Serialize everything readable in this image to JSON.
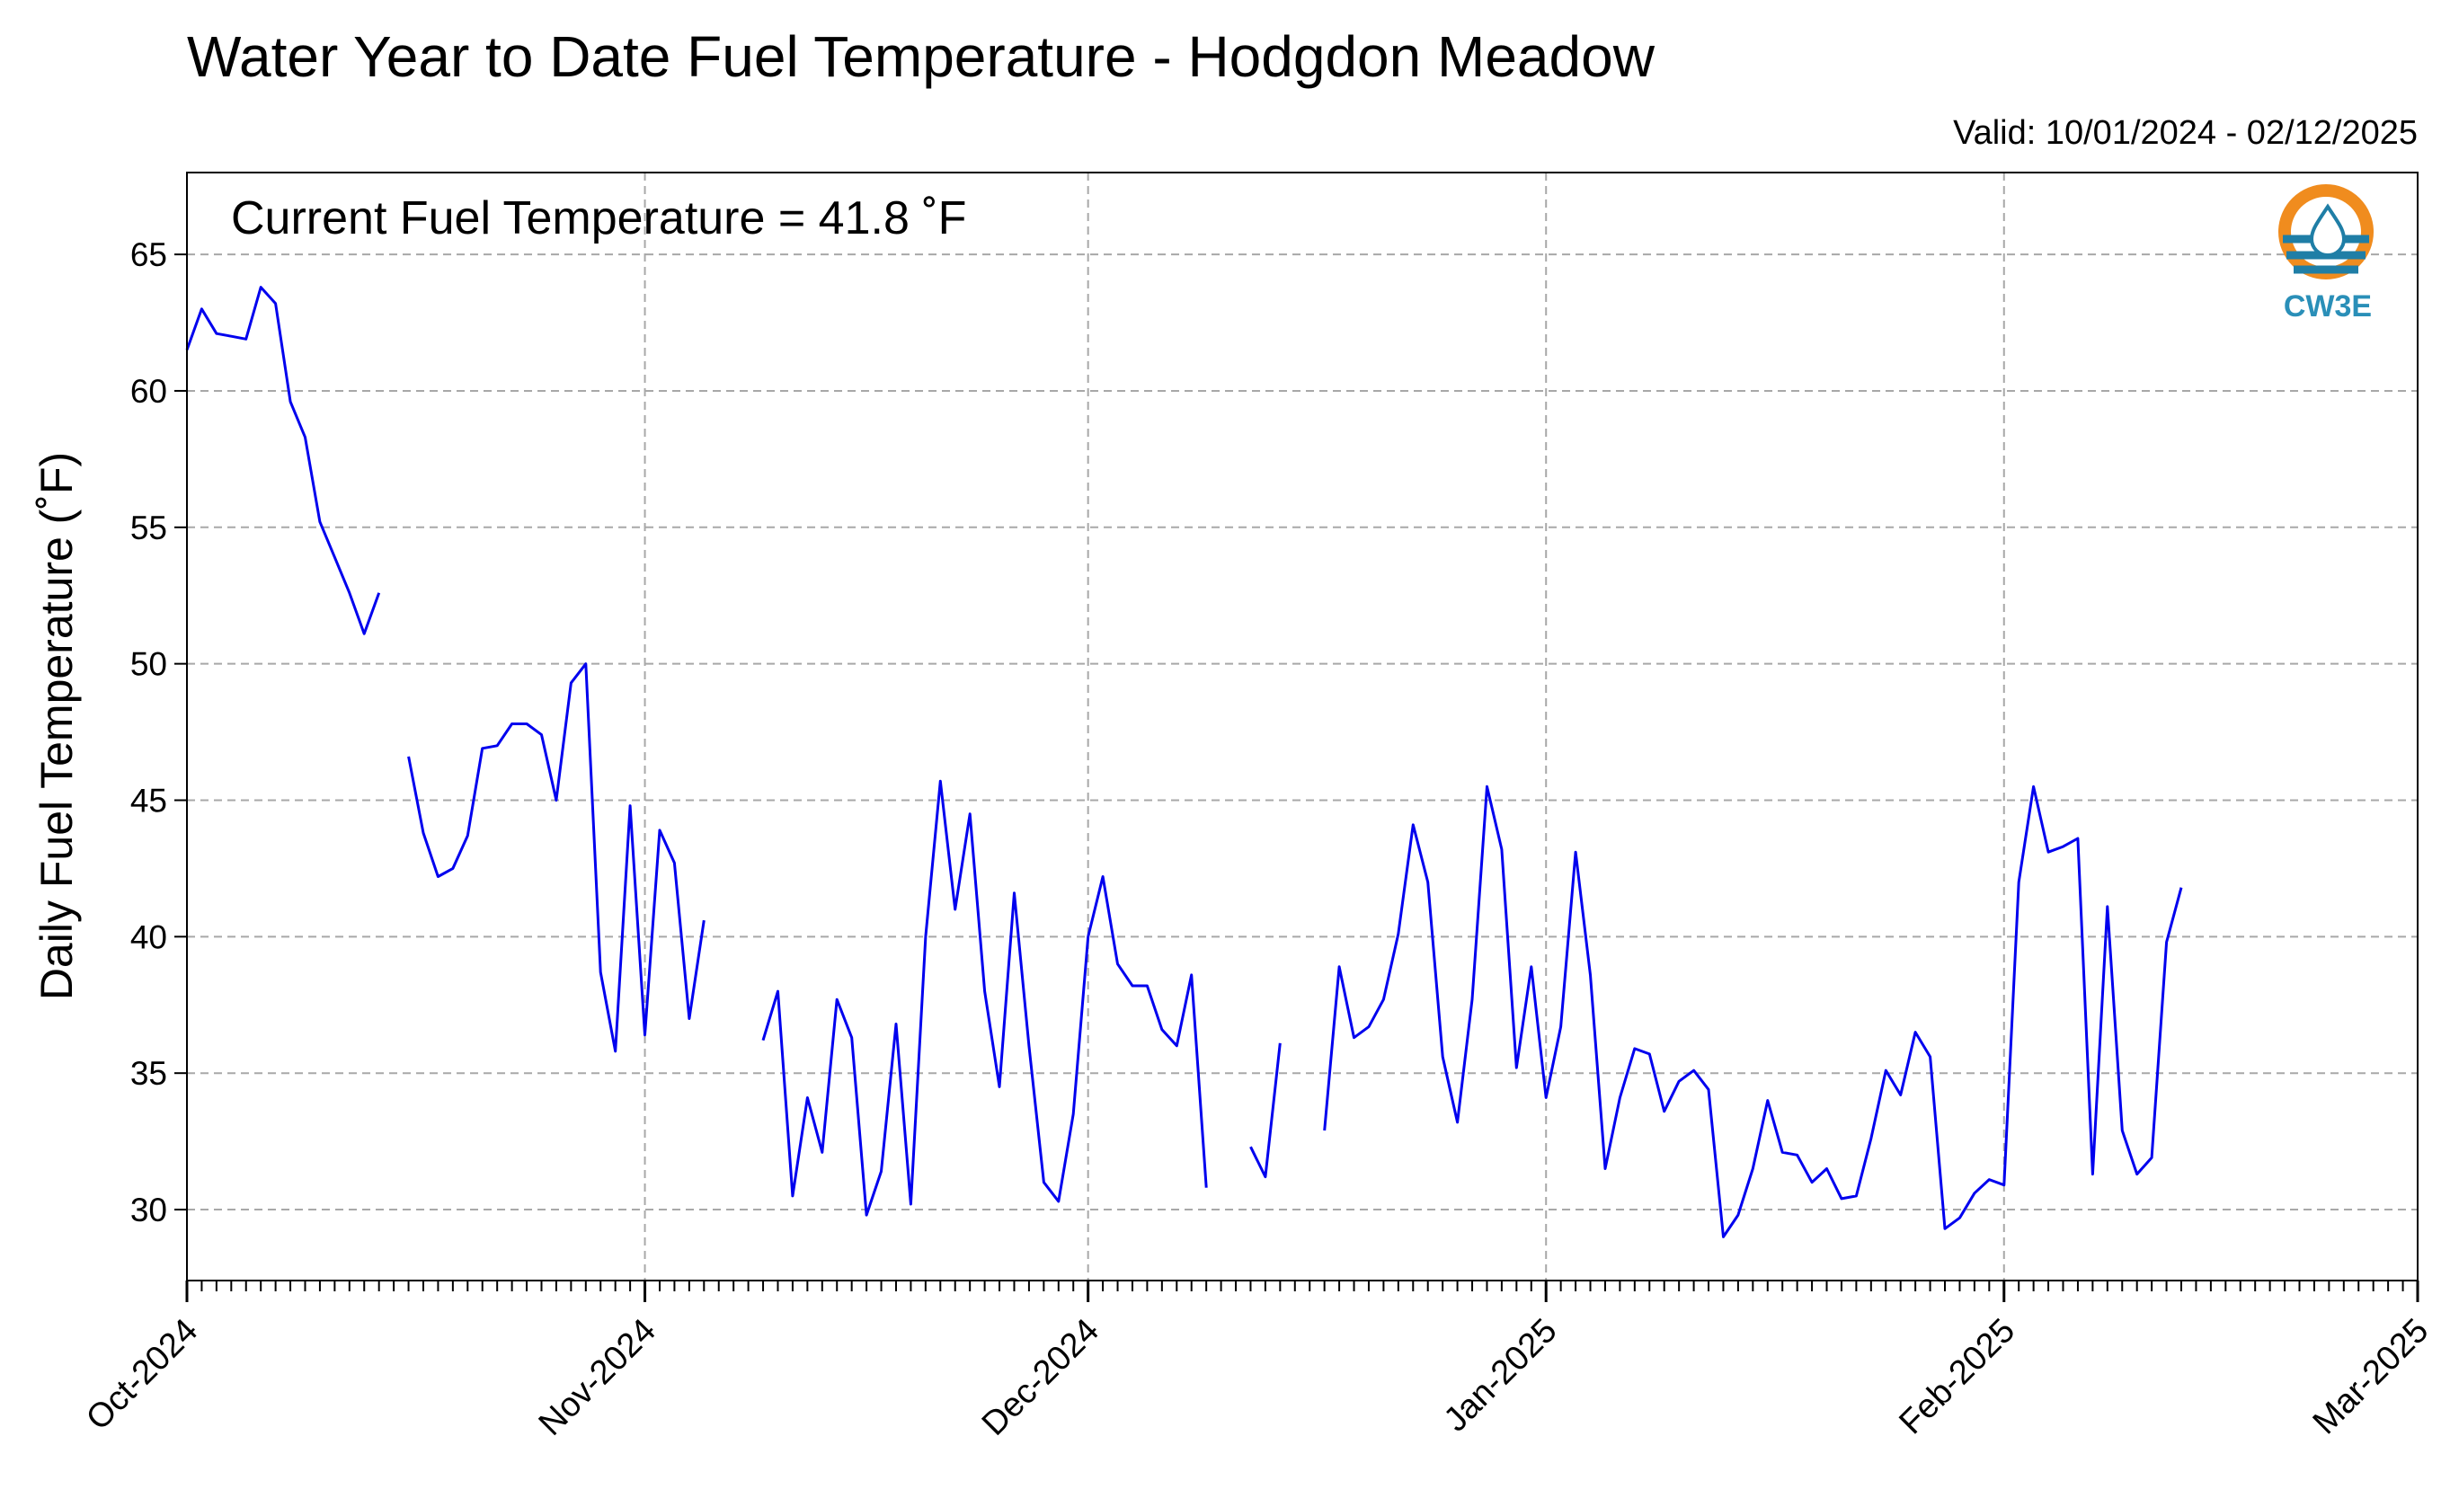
{
  "chart_data": {
    "type": "line",
    "title": "Water Year to Date Fuel Temperature - Hodgdon Meadow",
    "subtitle": "Valid: 10/01/2024 - 02/12/2025",
    "annotation": "Current Fuel Temperature = 41.8  ˚F",
    "ylabel": "Daily Fuel Temperature (˚F)",
    "xlabel": "",
    "x_range": [
      "2024-10-01",
      "2025-03-01"
    ],
    "ylim": [
      27.4,
      68
    ],
    "y_ticks": [
      30,
      35,
      40,
      45,
      50,
      55,
      60,
      65
    ],
    "x_ticks": [
      {
        "date": "2024-10-01",
        "label": "Oct-2024"
      },
      {
        "date": "2024-11-01",
        "label": "Nov-2024"
      },
      {
        "date": "2024-12-01",
        "label": "Dec-2024"
      },
      {
        "date": "2025-01-01",
        "label": "Jan-2025"
      },
      {
        "date": "2025-02-01",
        "label": "Feb-2025"
      },
      {
        "date": "2025-03-01",
        "label": "Mar-2025"
      }
    ],
    "grid": true,
    "series": [
      {
        "color": "#0000ee",
        "start_date": "2024-10-01",
        "values": [
          61.5,
          63.0,
          62.1,
          62.0,
          61.9,
          63.8,
          63.2,
          59.6,
          58.3,
          55.2,
          53.9,
          52.6,
          51.1,
          52.6,
          null,
          46.6,
          43.8,
          42.2,
          42.5,
          43.7,
          46.9,
          47.0,
          47.8,
          47.8,
          47.4,
          45.0,
          49.3,
          50.0,
          38.7,
          35.8,
          44.8,
          36.4,
          43.9,
          42.7,
          37.0,
          40.6,
          null,
          null,
          null,
          36.2,
          38.0,
          30.5,
          34.1,
          32.1,
          37.7,
          36.3,
          29.8,
          31.4,
          36.8,
          30.2,
          40.0,
          45.7,
          41.0,
          44.5,
          38.0,
          34.5,
          41.6,
          36.0,
          31.0,
          30.3,
          33.5,
          40.0,
          42.2,
          39.0,
          38.2,
          38.2,
          36.6,
          36.0,
          38.6,
          30.8,
          null,
          null,
          32.3,
          31.2,
          36.1,
          null,
          null,
          32.9,
          38.9,
          36.3,
          36.7,
          37.7,
          40.1,
          44.1,
          42.0,
          35.6,
          33.2,
          37.7,
          45.5,
          43.2,
          35.2,
          38.9,
          34.1,
          36.7,
          43.1,
          38.6,
          31.5,
          34.1,
          35.9,
          35.7,
          33.6,
          34.7,
          35.1,
          34.4,
          29.0,
          29.8,
          31.5,
          34.0,
          32.1,
          32.0,
          31.0,
          31.5,
          30.4,
          30.5,
          32.6,
          35.1,
          34.2,
          36.5,
          35.6,
          29.3,
          29.7,
          30.6,
          31.1,
          30.9,
          42.0,
          45.5,
          43.1,
          43.3,
          43.6,
          31.3,
          41.1,
          32.9,
          31.3,
          31.9,
          39.8,
          41.8
        ]
      }
    ]
  },
  "logo": {
    "text": "CW3E",
    "colors": {
      "ring": "#f08c1e",
      "water": "#1f7ea6",
      "drop": "#ffffff",
      "text": "#2a8fb8"
    }
  }
}
